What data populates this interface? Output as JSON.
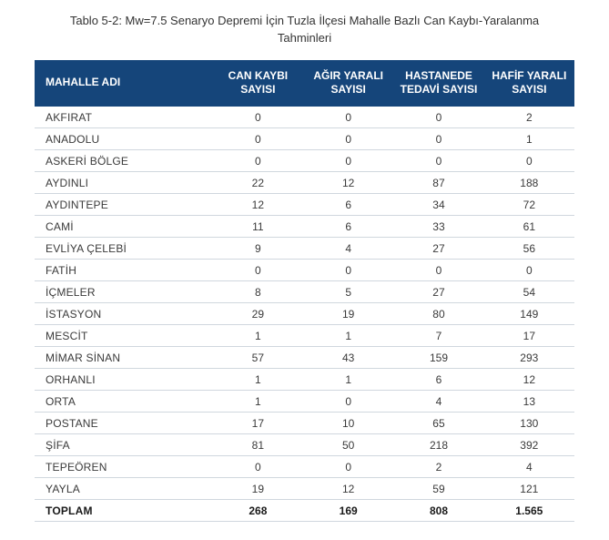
{
  "caption_line1": "Tablo 5-2: Mw=7.5 Senaryo Depremi İçin Tuzla İlçesi Mahalle Bazlı Can Kaybı-Yaralanma",
  "caption_line2": "Tahminleri",
  "table": {
    "type": "table",
    "header_bg": "#15457a",
    "header_fg": "#ffffff",
    "row_border": "#d0d7de",
    "columns": [
      {
        "key": "name",
        "label_l1": "MAHALLE ADI",
        "label_l2": "",
        "align": "left"
      },
      {
        "key": "c1",
        "label_l1": "CAN KAYBI",
        "label_l2": "SAYISI",
        "align": "center"
      },
      {
        "key": "c2",
        "label_l1": "AĞIR YARALI",
        "label_l2": "SAYISI",
        "align": "center"
      },
      {
        "key": "c3",
        "label_l1": "HASTANEDE",
        "label_l2": "TEDAVİ SAYISI",
        "align": "center"
      },
      {
        "key": "c4",
        "label_l1": "HAFİF YARALI",
        "label_l2": "SAYISI",
        "align": "center"
      }
    ],
    "rows": [
      {
        "name": "AKFIRAT",
        "c1": "0",
        "c2": "0",
        "c3": "0",
        "c4": "2"
      },
      {
        "name": "ANADOLU",
        "c1": "0",
        "c2": "0",
        "c3": "0",
        "c4": "1"
      },
      {
        "name": "ASKERİ BÖLGE",
        "c1": "0",
        "c2": "0",
        "c3": "0",
        "c4": "0"
      },
      {
        "name": "AYDINLI",
        "c1": "22",
        "c2": "12",
        "c3": "87",
        "c4": "188"
      },
      {
        "name": "AYDINTEPE",
        "c1": "12",
        "c2": "6",
        "c3": "34",
        "c4": "72"
      },
      {
        "name": "CAMİ",
        "c1": "11",
        "c2": "6",
        "c3": "33",
        "c4": "61"
      },
      {
        "name": "EVLİYA ÇELEBİ",
        "c1": "9",
        "c2": "4",
        "c3": "27",
        "c4": "56"
      },
      {
        "name": "FATİH",
        "c1": "0",
        "c2": "0",
        "c3": "0",
        "c4": "0"
      },
      {
        "name": "İÇMELER",
        "c1": "8",
        "c2": "5",
        "c3": "27",
        "c4": "54"
      },
      {
        "name": "İSTASYON",
        "c1": "29",
        "c2": "19",
        "c3": "80",
        "c4": "149"
      },
      {
        "name": "MESCİT",
        "c1": "1",
        "c2": "1",
        "c3": "7",
        "c4": "17"
      },
      {
        "name": "MİMAR SİNAN",
        "c1": "57",
        "c2": "43",
        "c3": "159",
        "c4": "293"
      },
      {
        "name": "ORHANLI",
        "c1": "1",
        "c2": "1",
        "c3": "6",
        "c4": "12"
      },
      {
        "name": "ORTA",
        "c1": "1",
        "c2": "0",
        "c3": "4",
        "c4": "13"
      },
      {
        "name": "POSTANE",
        "c1": "17",
        "c2": "10",
        "c3": "65",
        "c4": "130"
      },
      {
        "name": "ŞİFA",
        "c1": "81",
        "c2": "50",
        "c3": "218",
        "c4": "392"
      },
      {
        "name": "TEPEÖREN",
        "c1": "0",
        "c2": "0",
        "c3": "2",
        "c4": "4"
      },
      {
        "name": "YAYLA",
        "c1": "19",
        "c2": "12",
        "c3": "59",
        "c4": "121"
      }
    ],
    "total": {
      "name": "TOPLAM",
      "c1": "268",
      "c2": "169",
      "c3": "808",
      "c4": "1.565"
    }
  }
}
